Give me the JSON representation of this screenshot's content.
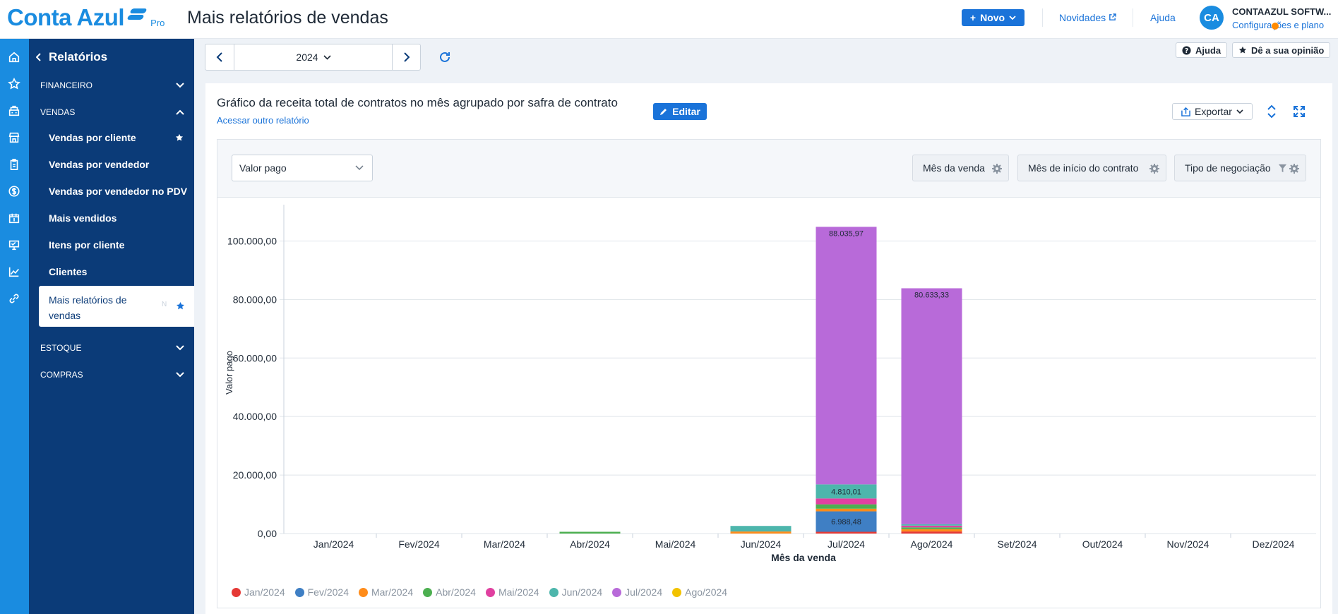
{
  "header": {
    "logo_text": "Conta Azul",
    "logo_pro": "Pro",
    "page_title": "Mais relatórios de vendas",
    "new_button": "Novo",
    "news_link": "Novidades",
    "help_link": "Ajuda",
    "avatar_initials": "CA",
    "company_name": "CONTAAZUL SOFTW...",
    "config_link": "Configurações e plano"
  },
  "rail_icons": [
    "home-icon",
    "star-icon",
    "cash-register-icon",
    "store-icon",
    "clipboard-icon",
    "money-icon",
    "calendar-money-icon",
    "pos-icon",
    "chart-line-icon",
    "link-icon"
  ],
  "sidebar": {
    "title": "Relatórios",
    "sections": {
      "financeiro": "FINANCEIRO",
      "vendas": "VENDAS",
      "estoque": "ESTOQUE",
      "compras": "COMPRAS"
    },
    "items": [
      {
        "label": "Vendas por cliente"
      },
      {
        "label": "Vendas por vendedor"
      },
      {
        "label": "Vendas por vendedor no PDV"
      },
      {
        "label": "Mais vendidos"
      },
      {
        "label": "Itens por cliente"
      },
      {
        "label": "Clientes"
      }
    ],
    "active_item": "Mais relatórios de vendas",
    "active_badge": "N"
  },
  "date_selector": {
    "year": "2024"
  },
  "top_actions": {
    "help": "Ajuda",
    "feedback": "Dê a sua opinião"
  },
  "report": {
    "title": "Gráfico da receita total de contratos no mês agrupado por safra de contrato",
    "other_report_link": "Acessar outro relatório",
    "edit_button": "Editar",
    "export_button": "Exportar"
  },
  "filters": {
    "metric_select": "Valor pago",
    "dimension_1": "Mês da venda",
    "dimension_2": "Mês de início do contrato",
    "dimension_3": "Tipo de negociação"
  },
  "colors": {
    "brand": "#1a8ce0",
    "sidebar": "#0b3b78",
    "primary_button": "#1a73d9"
  },
  "chart_data": {
    "type": "bar",
    "stacked": true,
    "xlabel": "Mês da venda",
    "ylabel": "Valor pago",
    "ylim": [
      0,
      110000
    ],
    "yticks": [
      0,
      20000,
      40000,
      60000,
      80000,
      100000
    ],
    "ytick_labels": [
      "0,00",
      "20.000,00",
      "40.000,00",
      "60.000,00",
      "80.000,00",
      "100.000,00"
    ],
    "grid": true,
    "legend_position": "bottom-left",
    "categories": [
      "Jan/2024",
      "Fev/2024",
      "Mar/2024",
      "Abr/2024",
      "Mai/2024",
      "Jun/2024",
      "Jul/2024",
      "Ago/2024",
      "Set/2024",
      "Out/2024",
      "Nov/2024",
      "Dez/2024"
    ],
    "series": [
      {
        "name": "Jan/2024",
        "color": "#e53935",
        "values": [
          0,
          0,
          0,
          0,
          0,
          0,
          600,
          700,
          0,
          0,
          0,
          0
        ]
      },
      {
        "name": "Fev/2024",
        "color": "#3f7fc4",
        "values": [
          0,
          0,
          0,
          0,
          0,
          0,
          6988.48,
          0,
          0,
          0,
          0,
          0
        ]
      },
      {
        "name": "Mar/2024",
        "color": "#ff8c1a",
        "values": [
          0,
          0,
          0,
          0,
          0,
          700,
          900,
          800,
          0,
          0,
          0,
          0
        ]
      },
      {
        "name": "Abr/2024",
        "color": "#4caf50",
        "values": [
          0,
          0,
          0,
          600,
          0,
          0,
          1500,
          600,
          0,
          0,
          0,
          0
        ]
      },
      {
        "name": "Mai/2024",
        "color": "#e040a0",
        "values": [
          0,
          0,
          0,
          0,
          0,
          0,
          2000,
          600,
          0,
          0,
          0,
          0
        ]
      },
      {
        "name": "Jun/2024",
        "color": "#4db6ac",
        "values": [
          0,
          0,
          0,
          0,
          0,
          1900,
          4810.01,
          500,
          0,
          0,
          0,
          0
        ]
      },
      {
        "name": "Jul/2024",
        "color": "#b86ad9",
        "values": [
          0,
          0,
          0,
          0,
          0,
          0,
          88035.97,
          80633.33,
          0,
          0,
          0,
          0
        ]
      },
      {
        "name": "Ago/2024",
        "color": "#f2c200",
        "values": [
          0,
          0,
          0,
          0,
          0,
          0,
          0,
          0,
          0,
          0,
          0,
          0
        ]
      }
    ],
    "data_labels": [
      {
        "category": "Jul/2024",
        "series": "Jul/2024",
        "text": "88.035,97"
      },
      {
        "category": "Jul/2024",
        "series": "Jun/2024",
        "text": "4.810,01"
      },
      {
        "category": "Jul/2024",
        "series": "Fev/2024",
        "text": "6.988,48"
      },
      {
        "category": "Ago/2024",
        "series": "Jul/2024",
        "text": "80.633,33"
      }
    ]
  }
}
